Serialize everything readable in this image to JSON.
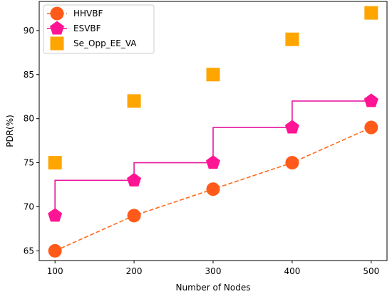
{
  "chart_data": {
    "type": "scatter",
    "xlabel": "Number of Nodes",
    "ylabel": "PDR(%)",
    "xlim": [
      80,
      520
    ],
    "ylim": [
      63.9,
      93.3
    ],
    "x_ticks": [
      100,
      200,
      300,
      400,
      500
    ],
    "y_ticks": [
      65,
      70,
      75,
      80,
      85,
      90
    ],
    "grid": false,
    "legend_position": "top-left",
    "series": [
      {
        "name": "HHVBF",
        "x": [
          100,
          200,
          300,
          400,
          500
        ],
        "values": [
          65,
          69,
          72,
          75,
          79
        ],
        "line": "dashed",
        "marker": "circle",
        "color": "#ff5a1a",
        "line_color": "#ff6a1a"
      },
      {
        "name": "ESVBF",
        "x": [
          100,
          200,
          300,
          400,
          500
        ],
        "values": [
          69,
          73,
          75,
          79,
          82
        ],
        "line": "step",
        "marker": "pentagon",
        "color": "#ff1493",
        "line_color": "#e8189e"
      },
      {
        "name": "Se_Opp_EE_VA",
        "x": [
          100,
          200,
          300,
          400,
          500
        ],
        "values": [
          75,
          82,
          85,
          89,
          92
        ],
        "line": "none",
        "marker": "square",
        "color": "#ffa500"
      }
    ]
  }
}
